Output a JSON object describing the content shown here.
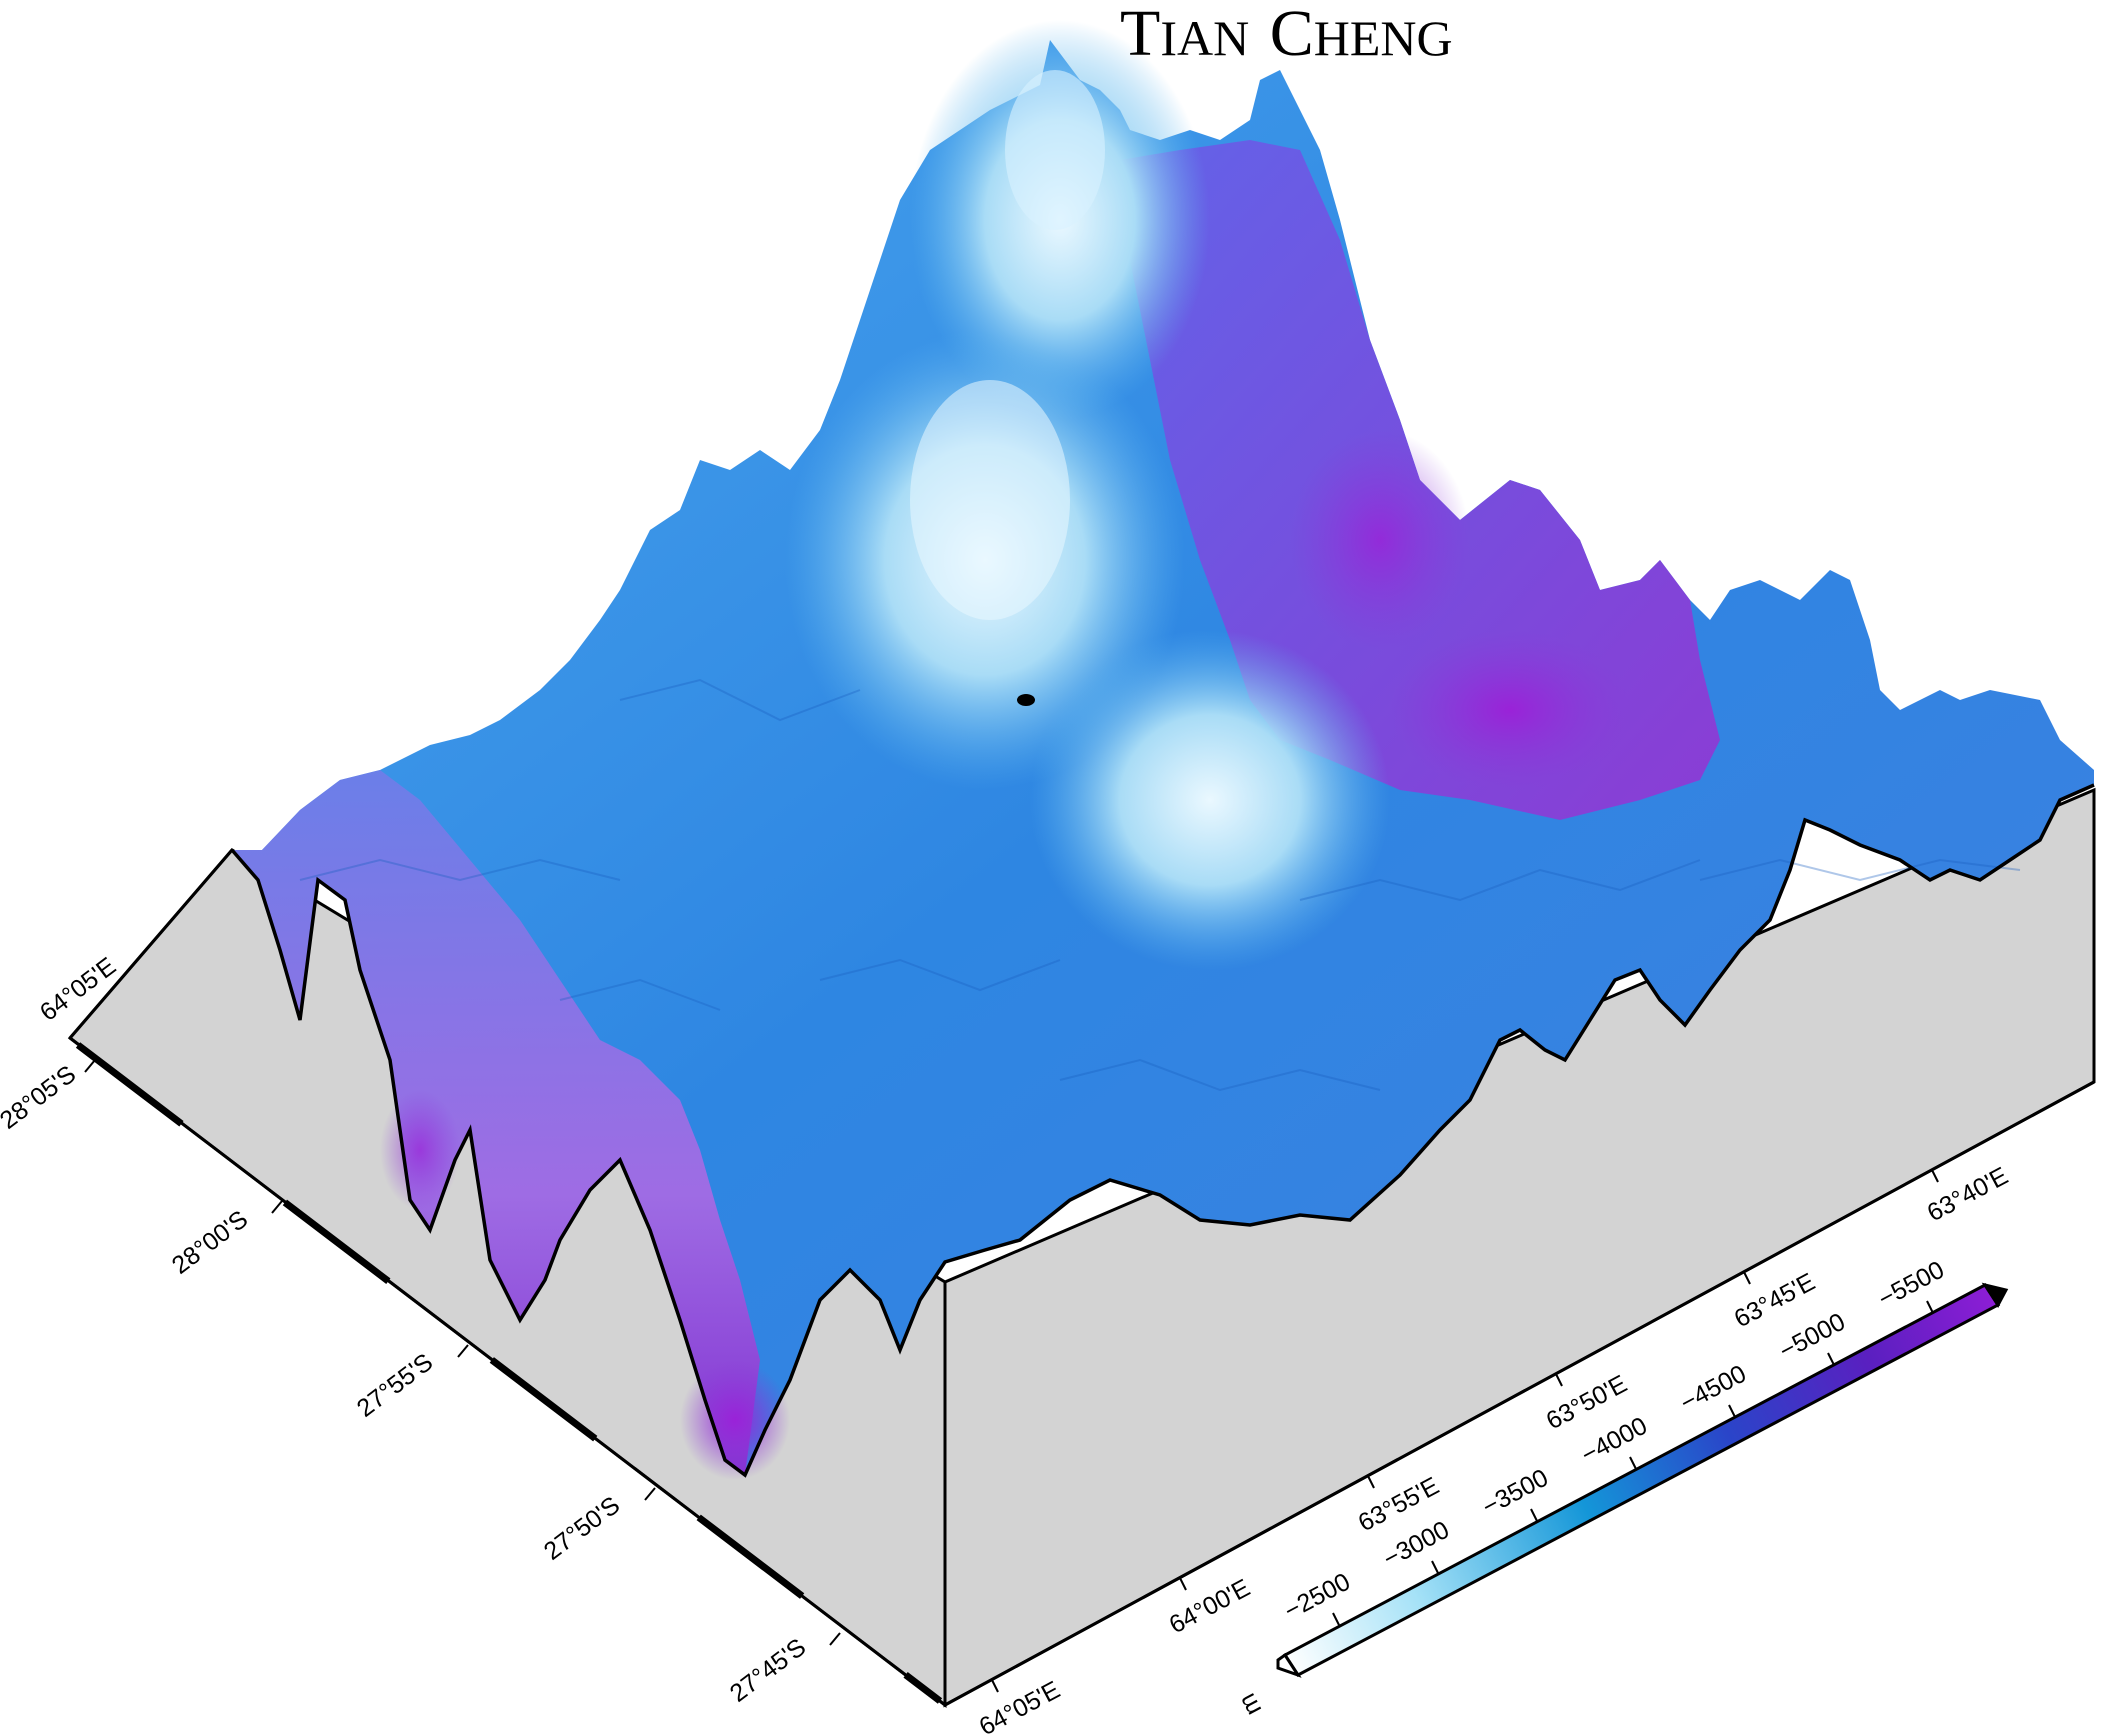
{
  "title": {
    "main": "TIAN CHENG",
    "cap1": "T",
    "rest1": "IAN",
    "cap2": "C",
    "rest2": "HENG"
  },
  "axes": {
    "lat_labels": [
      "28°05'S",
      "28°00'S",
      "27°55'S",
      "27°50'S",
      "27°45'S"
    ],
    "lon_front_labels": [
      "64°05'E",
      "64°00'E",
      "63°55'E",
      "63°50'E",
      "63°45'E",
      "63°40'E"
    ],
    "lon_back_label": "64°05'E"
  },
  "colorbar": {
    "unit": "m",
    "ticks": [
      "-2500",
      "-3000",
      "-3500",
      "-4000",
      "-4500",
      "-5000",
      "-5500"
    ],
    "colors": {
      "shallow": "#ffffff",
      "mid_light": "#9fdcf5",
      "mid": "#1fa0e0",
      "deep": "#2a3fc8",
      "deepest": "#7a12c8"
    }
  },
  "colors": {
    "base_gray": "#d3d3d3",
    "surface_light": "#d8f1ff",
    "surface_blue": "#2f8ae6",
    "surface_purple": "#8a3ad8"
  }
}
